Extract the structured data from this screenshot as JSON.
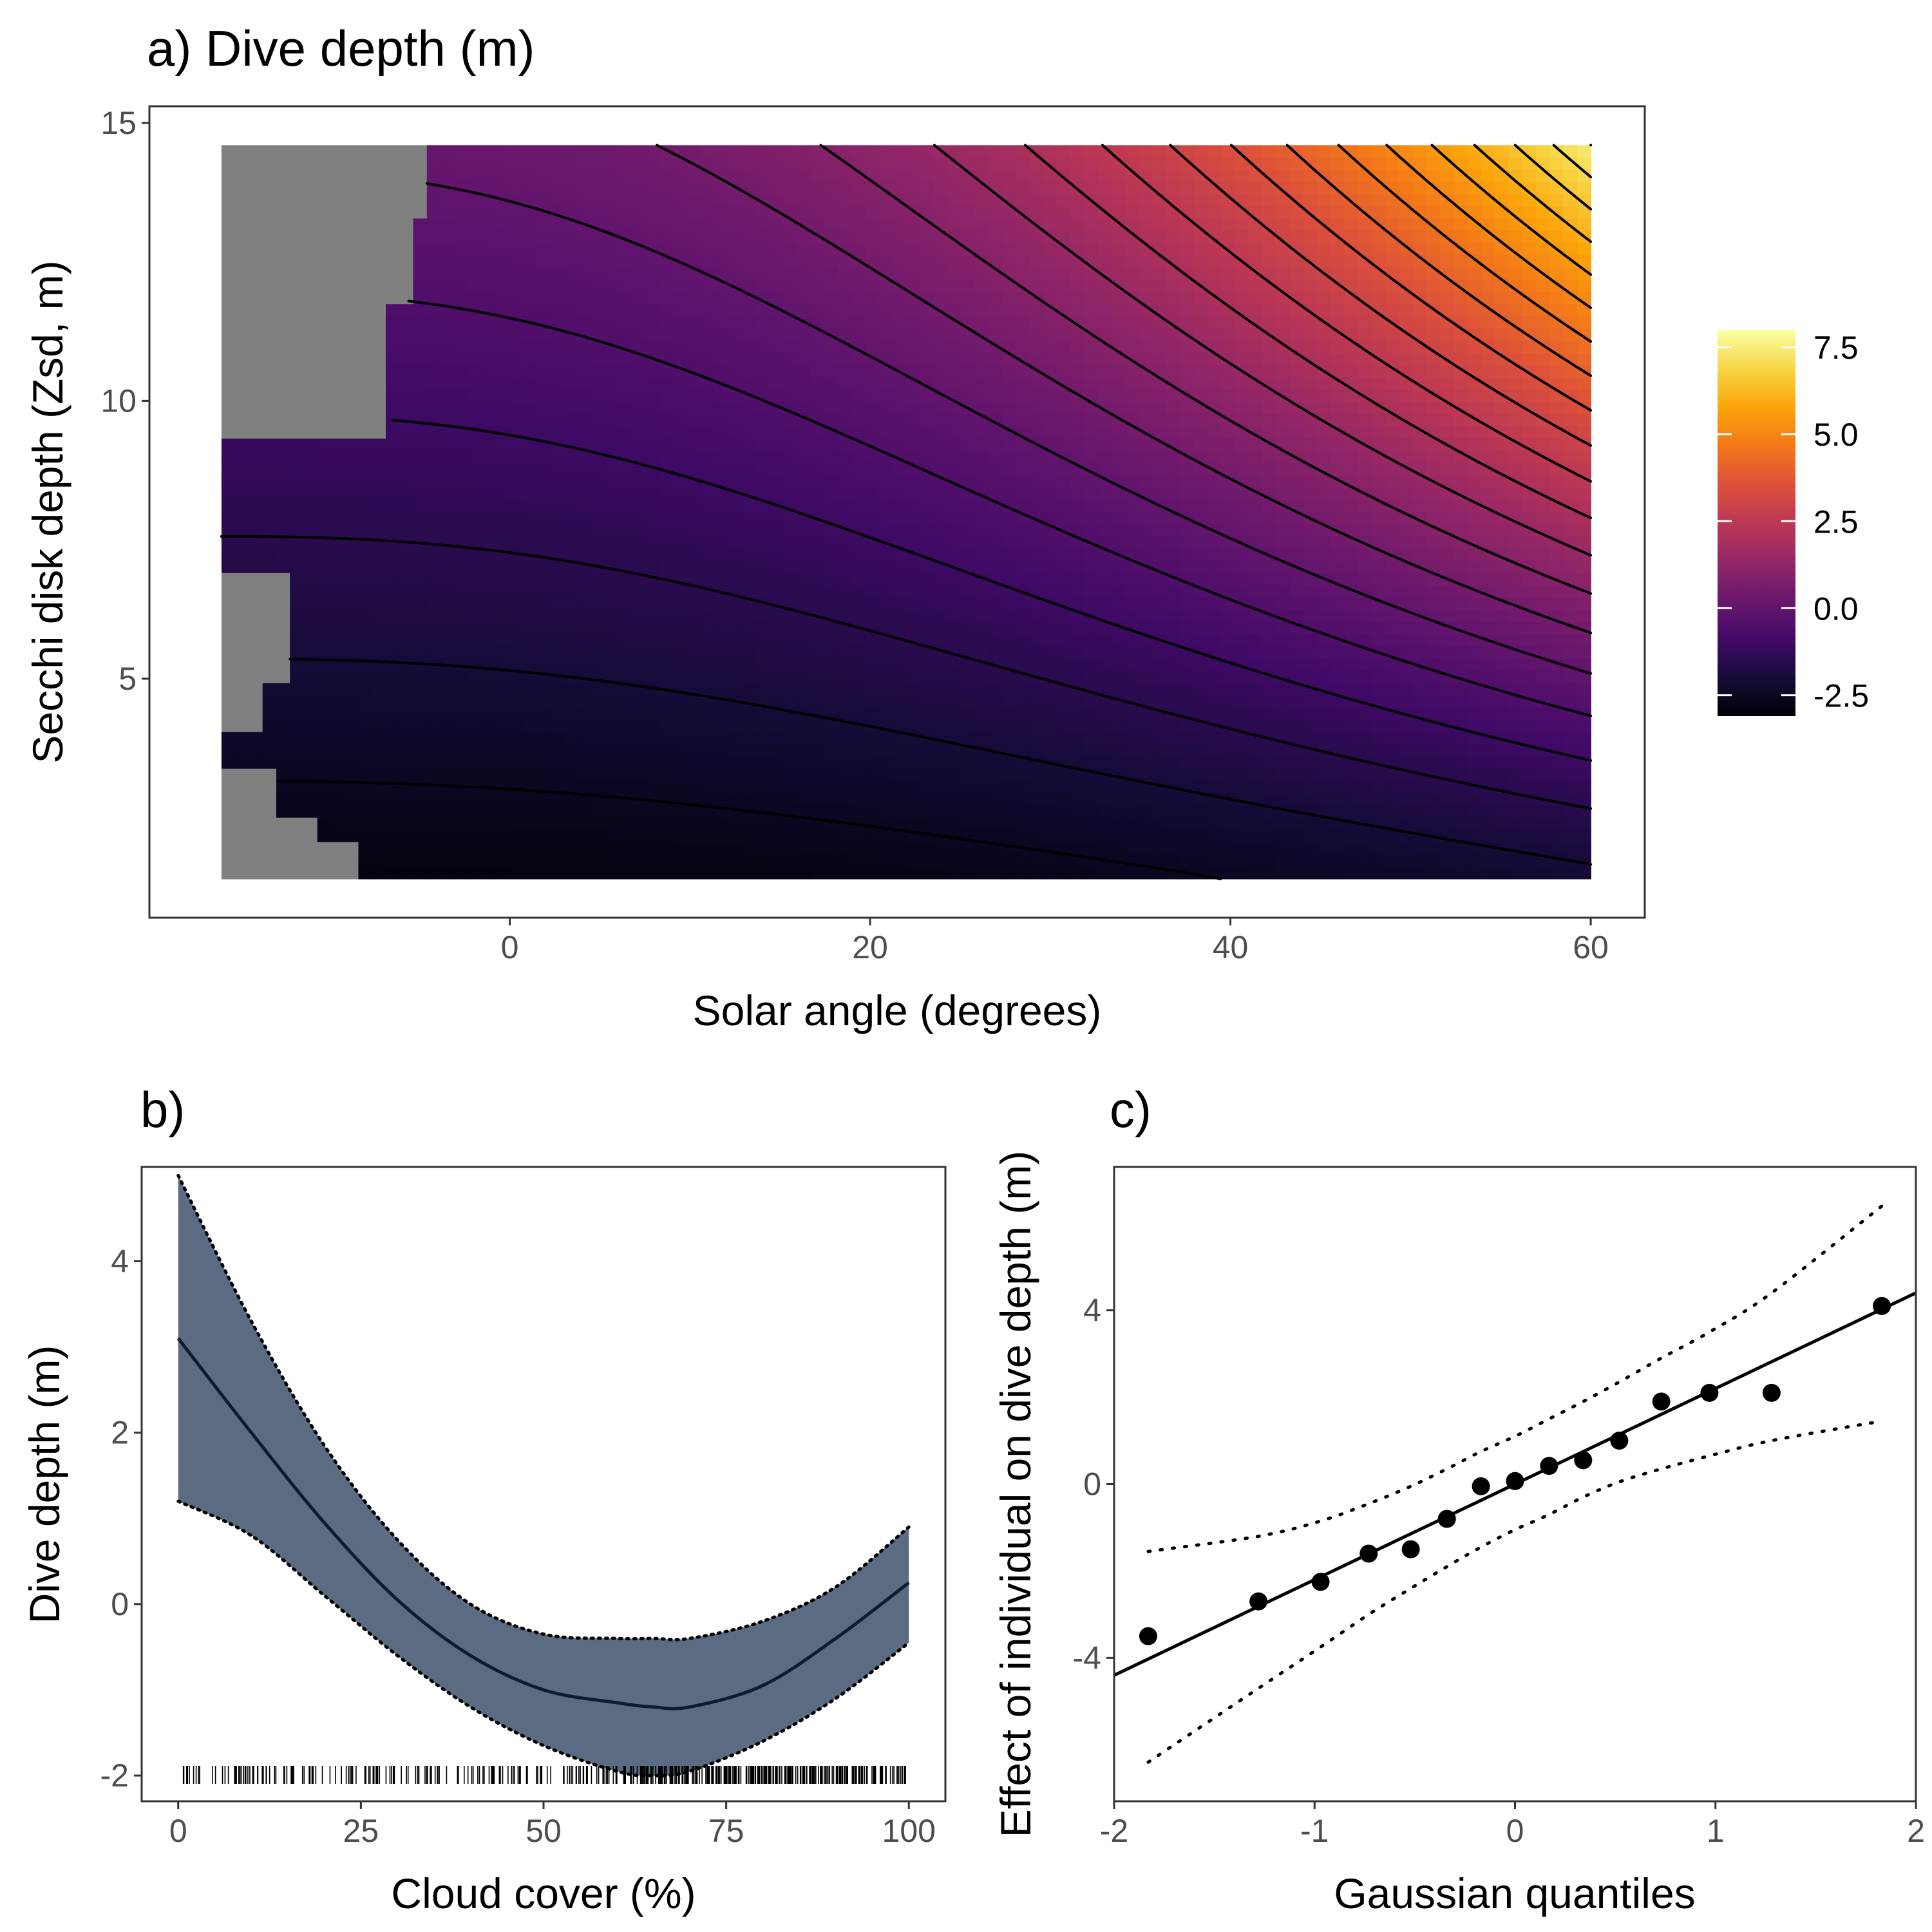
{
  "chart_data": [
    {
      "id": "a",
      "type": "heatmap",
      "title": "a) Dive depth (m)",
      "xlabel": "Solar angle (degrees)",
      "ylabel": "Secchi disk depth (Zsd, m)",
      "xlim": [
        -20,
        63
      ],
      "ylim": [
        0.7,
        15.3
      ],
      "grid_x": [
        -16,
        60
      ],
      "grid_y": [
        1.4,
        14.6
      ],
      "xticks": [
        0,
        20,
        40,
        60
      ],
      "yticks": [
        5,
        10,
        15
      ],
      "colorscale": "inferno",
      "legend": {
        "position": "right",
        "range": [
          -3.1,
          8.0
        ],
        "ticks": [
          7.5,
          5.0,
          2.5,
          0.0,
          -2.5
        ],
        "tick_labels": [
          "7.5",
          "5.0",
          "2.5",
          "0.0",
          "-2.5"
        ]
      },
      "contours": true,
      "na_color": "#808080",
      "surface_note": "Dive depth rises toward high solar angle and clear water (Zsd), lowest at low Zsd"
    },
    {
      "id": "b",
      "type": "line",
      "title": "b)",
      "xlabel": "Cloud cover (%)",
      "ylabel": "Dive depth (m)",
      "xlim": [
        -5,
        105
      ],
      "ylim": [
        -2.3,
        5.1
      ],
      "xticks": [
        0,
        25,
        50,
        75,
        100
      ],
      "yticks": [
        -2,
        0,
        2,
        4
      ],
      "x": [
        0,
        10,
        20,
        30,
        40,
        50,
        60,
        65,
        70,
        80,
        90,
        100
      ],
      "fit": [
        3.1,
        2.0,
        0.95,
        0.05,
        -0.6,
        -1.0,
        -1.15,
        -1.2,
        -1.2,
        -0.95,
        -0.4,
        0.25
      ],
      "lower": [
        1.2,
        0.8,
        0.1,
        -0.6,
        -1.2,
        -1.65,
        -1.95,
        -2.0,
        -1.95,
        -1.6,
        -1.1,
        -0.45
      ],
      "upper": [
        5.0,
        3.3,
        1.85,
        0.75,
        0.0,
        -0.35,
        -0.4,
        -0.4,
        -0.4,
        -0.2,
        0.2,
        0.9
      ],
      "ribbon_color": "#5b6b82",
      "rug": true
    },
    {
      "id": "c",
      "type": "scatter",
      "title": "c)",
      "xlabel": "Gaussian quantiles",
      "ylabel": "Effect of individual on dive depth (m)",
      "xlim": [
        -2.0,
        2.0
      ],
      "ylim": [
        -7.3,
        7.3
      ],
      "xticks": [
        -2,
        -1,
        0,
        1,
        2
      ],
      "yticks": [
        -4,
        0,
        4
      ],
      "points": [
        {
          "x": -1.83,
          "y": -3.5
        },
        {
          "x": -1.28,
          "y": -2.7
        },
        {
          "x": -0.97,
          "y": -2.25
        },
        {
          "x": -0.73,
          "y": -1.6
        },
        {
          "x": -0.52,
          "y": -1.5
        },
        {
          "x": -0.34,
          "y": -0.8
        },
        {
          "x": -0.17,
          "y": -0.05
        },
        {
          "x": 0.0,
          "y": 0.07
        },
        {
          "x": 0.17,
          "y": 0.42
        },
        {
          "x": 0.34,
          "y": 0.55
        },
        {
          "x": 0.52,
          "y": 1.0
        },
        {
          "x": 0.73,
          "y": 1.9
        },
        {
          "x": 0.97,
          "y": 2.1
        },
        {
          "x": 1.28,
          "y": 2.1
        },
        {
          "x": 1.83,
          "y": 4.1
        }
      ],
      "fit_line": {
        "intercept": 0.0,
        "slope": 2.2
      },
      "envelope_x": [
        -1.83,
        -1.28,
        -0.97,
        -0.73,
        -0.52,
        -0.34,
        -0.17,
        0.0,
        0.17,
        0.34,
        0.52,
        0.73,
        0.97,
        1.28,
        1.83
      ],
      "envelope_upper": [
        -1.55,
        -1.2,
        -0.85,
        -0.45,
        -0.05,
        0.35,
        0.75,
        1.1,
        1.5,
        1.9,
        2.35,
        2.9,
        3.5,
        4.4,
        6.4
      ],
      "envelope_lower": [
        -6.4,
        -4.7,
        -3.75,
        -3.0,
        -2.4,
        -1.9,
        -1.45,
        -1.05,
        -0.7,
        -0.3,
        0.05,
        0.35,
        0.65,
        1.0,
        1.45
      ]
    }
  ]
}
